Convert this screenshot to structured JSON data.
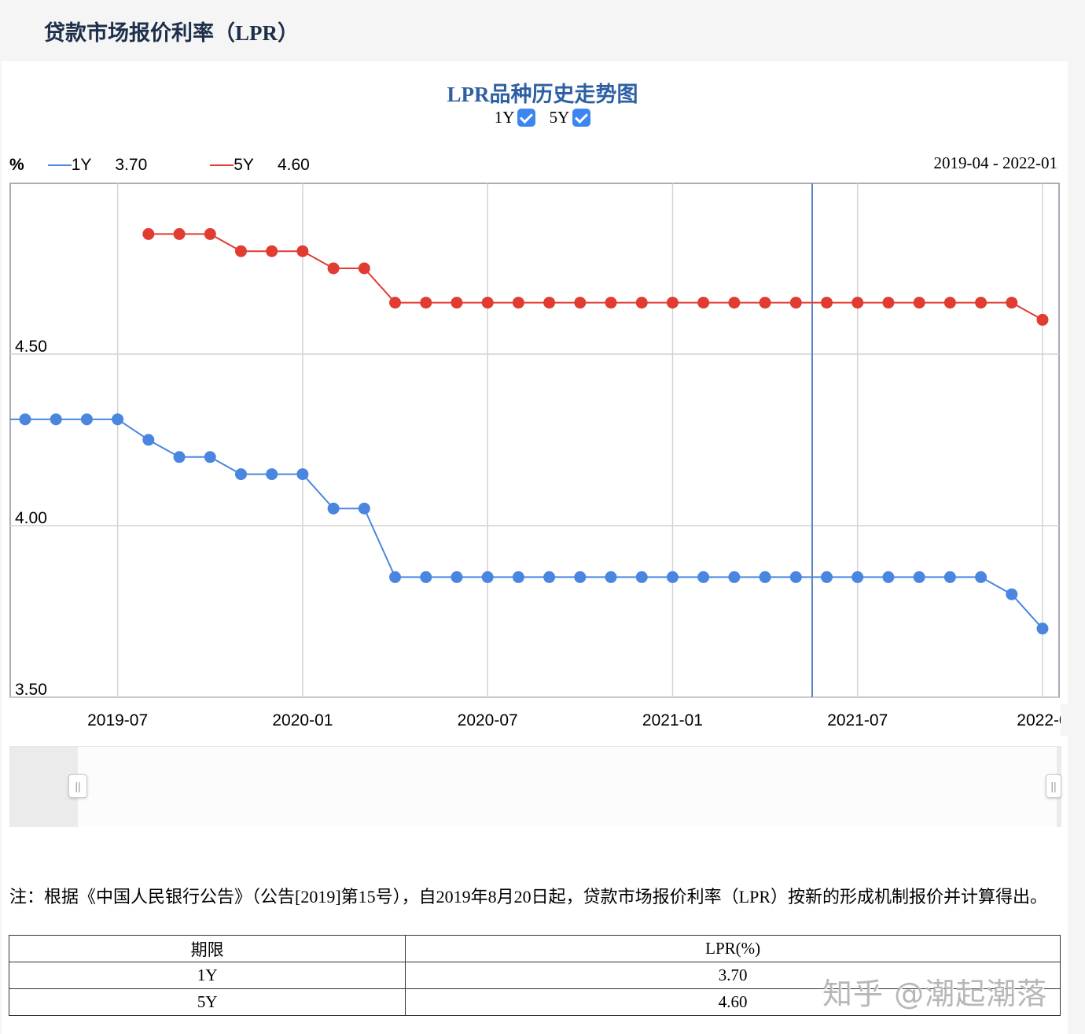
{
  "page": {
    "title": "贷款市场报价利率（LPR）"
  },
  "chart": {
    "title": "LPR品种历史走势图",
    "toggles": [
      {
        "label": "1Y",
        "checked": true
      },
      {
        "label": "5Y",
        "checked": true
      }
    ],
    "unit": "%",
    "legend": [
      {
        "label": "1Y",
        "value": "3.70",
        "color": "#4a86e0"
      },
      {
        "label": "5Y",
        "value": "4.60",
        "color": "#e03c31"
      }
    ],
    "range_label": "2019-04 - 2022-01",
    "y_ticks": [
      "4.50",
      "4.00",
      "3.50"
    ],
    "x_ticks": [
      "2019-07",
      "2020-01",
      "2020-07",
      "2021-01",
      "2021-07",
      "2022-0"
    ]
  },
  "chart_data": {
    "type": "line",
    "title": "LPR品种历史走势图",
    "xlabel": "",
    "ylabel": "%",
    "ylim": [
      3.5,
      5.0
    ],
    "grid": true,
    "legend_position": "top-left",
    "x": [
      "2019-04",
      "2019-05",
      "2019-06",
      "2019-07",
      "2019-08",
      "2019-09",
      "2019-10",
      "2019-11",
      "2019-12",
      "2020-01",
      "2020-02",
      "2020-03",
      "2020-04",
      "2020-05",
      "2020-06",
      "2020-07",
      "2020-08",
      "2020-09",
      "2020-10",
      "2020-11",
      "2020-12",
      "2021-01",
      "2021-02",
      "2021-03",
      "2021-04",
      "2021-05",
      "2021-06",
      "2021-07",
      "2021-08",
      "2021-09",
      "2021-10",
      "2021-11",
      "2021-12",
      "2022-01"
    ],
    "series": [
      {
        "name": "1Y",
        "color": "#4a86e0",
        "values": [
          4.31,
          4.31,
          4.31,
          4.31,
          4.25,
          4.2,
          4.2,
          4.15,
          4.15,
          4.15,
          4.05,
          4.05,
          3.85,
          3.85,
          3.85,
          3.85,
          3.85,
          3.85,
          3.85,
          3.85,
          3.85,
          3.85,
          3.85,
          3.85,
          3.85,
          3.85,
          3.85,
          3.85,
          3.85,
          3.85,
          3.85,
          3.85,
          3.8,
          3.7
        ]
      },
      {
        "name": "5Y",
        "color": "#e03c31",
        "values": [
          null,
          null,
          null,
          null,
          4.85,
          4.85,
          4.85,
          4.8,
          4.8,
          4.8,
          4.75,
          4.75,
          4.65,
          4.65,
          4.65,
          4.65,
          4.65,
          4.65,
          4.65,
          4.65,
          4.65,
          4.65,
          4.65,
          4.65,
          4.65,
          4.65,
          4.65,
          4.65,
          4.65,
          4.65,
          4.65,
          4.65,
          4.65,
          4.6
        ]
      }
    ]
  },
  "note": "注：根据《中国人民银行公告》（公告[2019]第15号），自2019年8月20日起，贷款市场报价利率（LPR）按新的形成机制报价并计算得出。",
  "table": {
    "headers": [
      "期限",
      "LPR(%)"
    ],
    "rows": [
      [
        "1Y",
        "3.70"
      ],
      [
        "5Y",
        "4.60"
      ]
    ]
  },
  "watermark": "知乎 @潮起潮落"
}
